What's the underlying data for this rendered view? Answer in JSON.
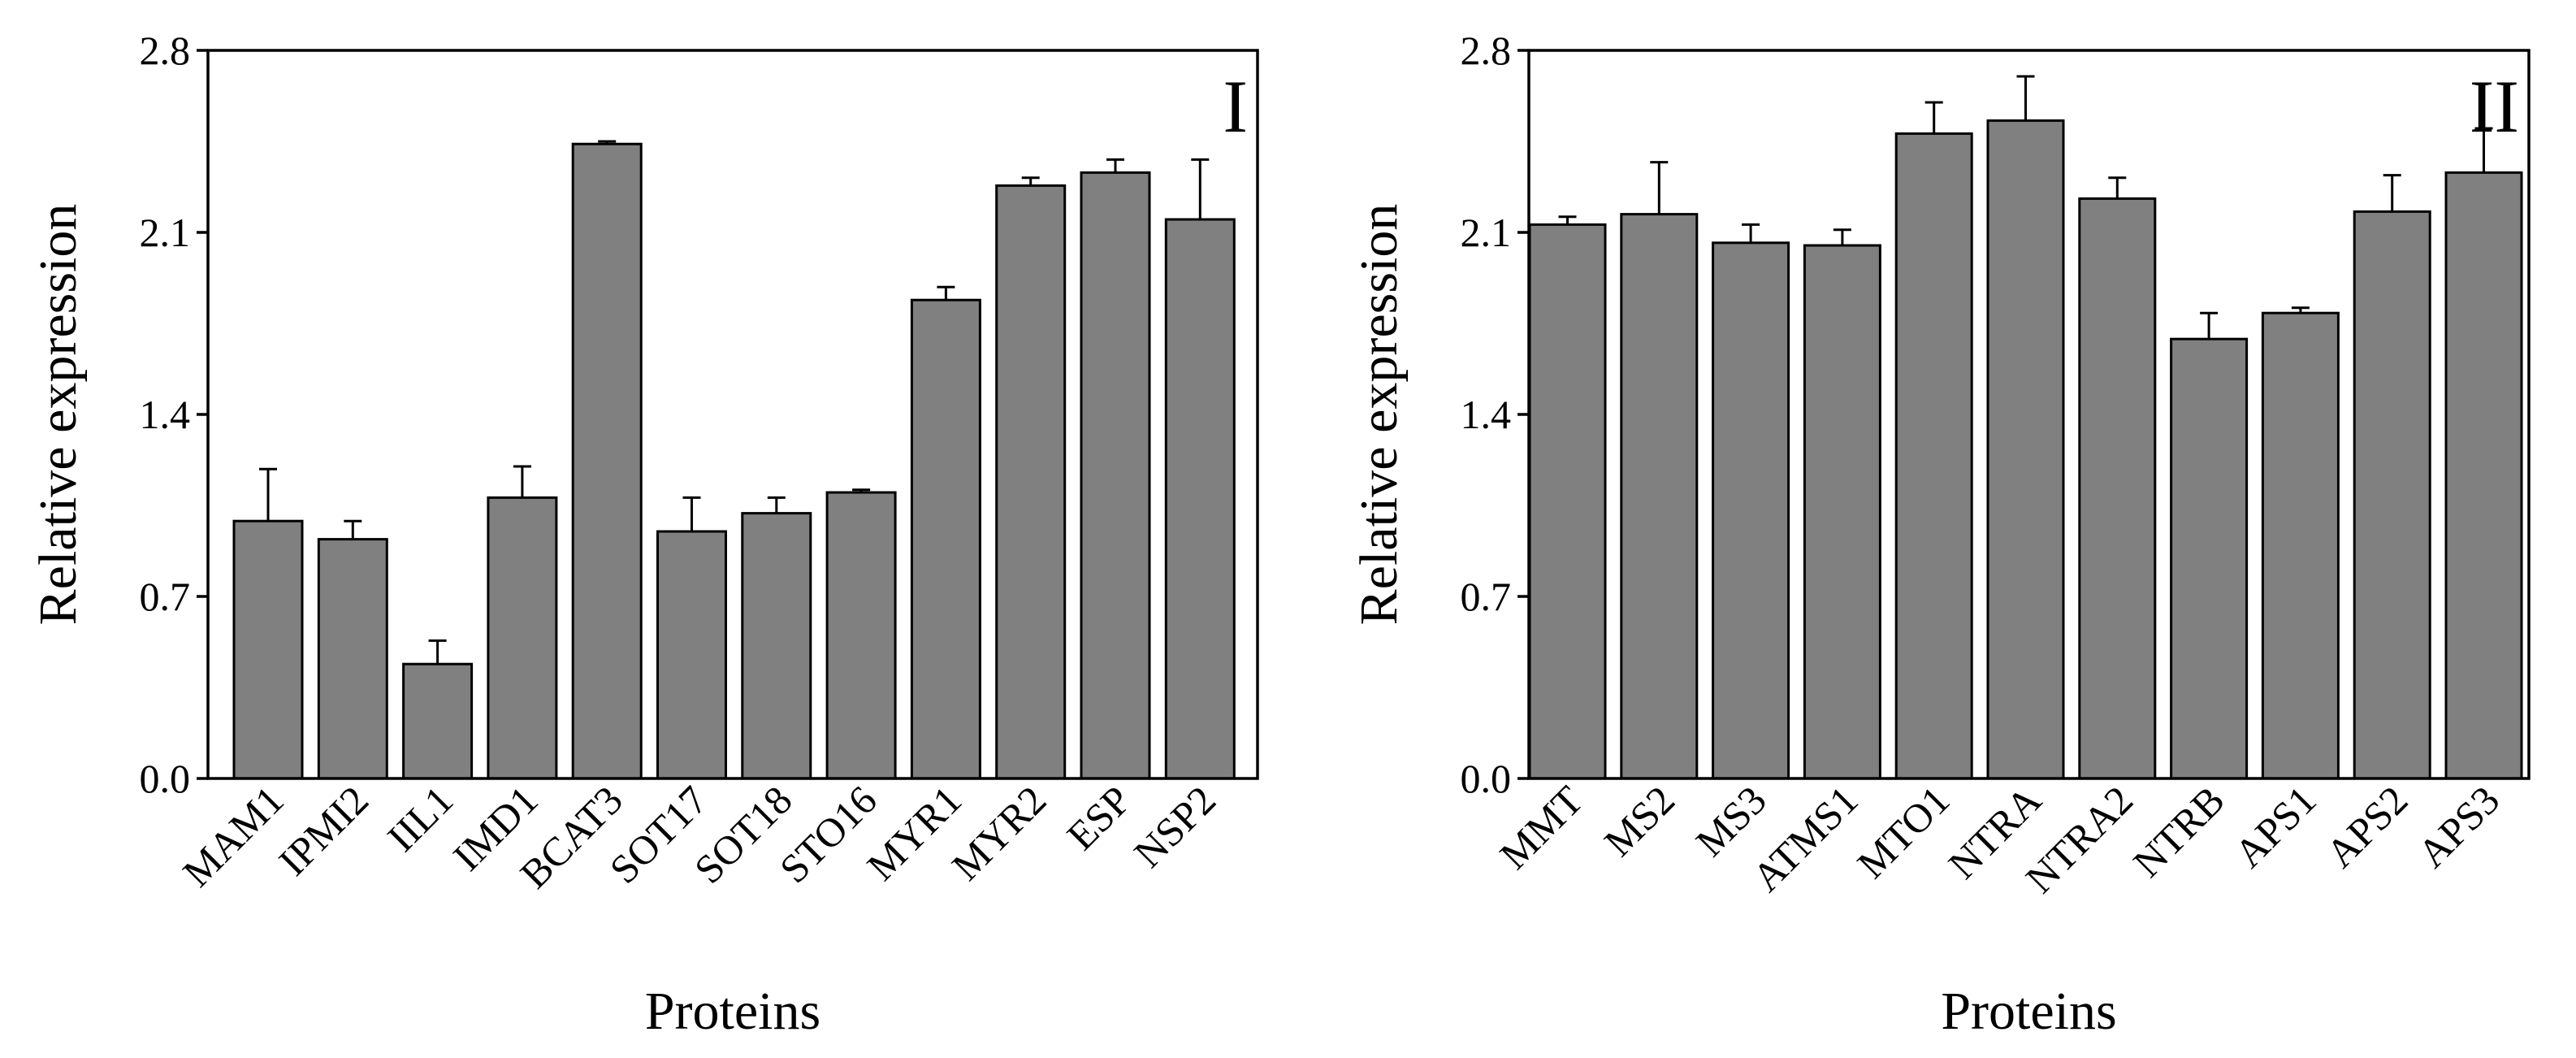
{
  "chart_data": [
    {
      "type": "bar",
      "panel_label": "I",
      "xlabel": "Proteins",
      "ylabel": "Relative expression",
      "ylim": [
        0,
        2.8
      ],
      "yticks": [
        "0.0",
        "0.7",
        "1.4",
        "2.1",
        "2.8"
      ],
      "categories": [
        "MAM1",
        "IPMI2",
        "IIL1",
        "IMD1",
        "BCAT3",
        "SOT17",
        "SOT18",
        "STO16",
        "MYR1",
        "MYR2",
        "ESP",
        "NSP2"
      ],
      "values": [
        0.99,
        0.92,
        0.44,
        1.08,
        2.44,
        0.95,
        1.02,
        1.1,
        1.84,
        2.28,
        2.33,
        2.15
      ],
      "errors": [
        0.2,
        0.07,
        0.09,
        0.12,
        0.01,
        0.13,
        0.06,
        0.01,
        0.05,
        0.03,
        0.05,
        0.23
      ],
      "grid": false,
      "legend": "none"
    },
    {
      "type": "bar",
      "panel_label": "II",
      "xlabel": "Proteins",
      "ylabel": "Relative expression",
      "ylim": [
        0,
        2.8
      ],
      "yticks": [
        "0.0",
        "0.7",
        "1.4",
        "2.1",
        "2.8"
      ],
      "categories": [
        "MMT",
        "MS2",
        "MS3",
        "ATMS1",
        "MTO1",
        "NTRA",
        "NTRA2",
        "NTRB",
        "APS1",
        "APS2",
        "APS3"
      ],
      "values": [
        2.13,
        2.17,
        2.06,
        2.05,
        2.48,
        2.53,
        2.23,
        1.69,
        1.79,
        2.18,
        2.33
      ],
      "errors": [
        0.03,
        0.2,
        0.07,
        0.06,
        0.12,
        0.17,
        0.08,
        0.1,
        0.02,
        0.14,
        0.17
      ],
      "grid": false,
      "legend": "none"
    }
  ]
}
